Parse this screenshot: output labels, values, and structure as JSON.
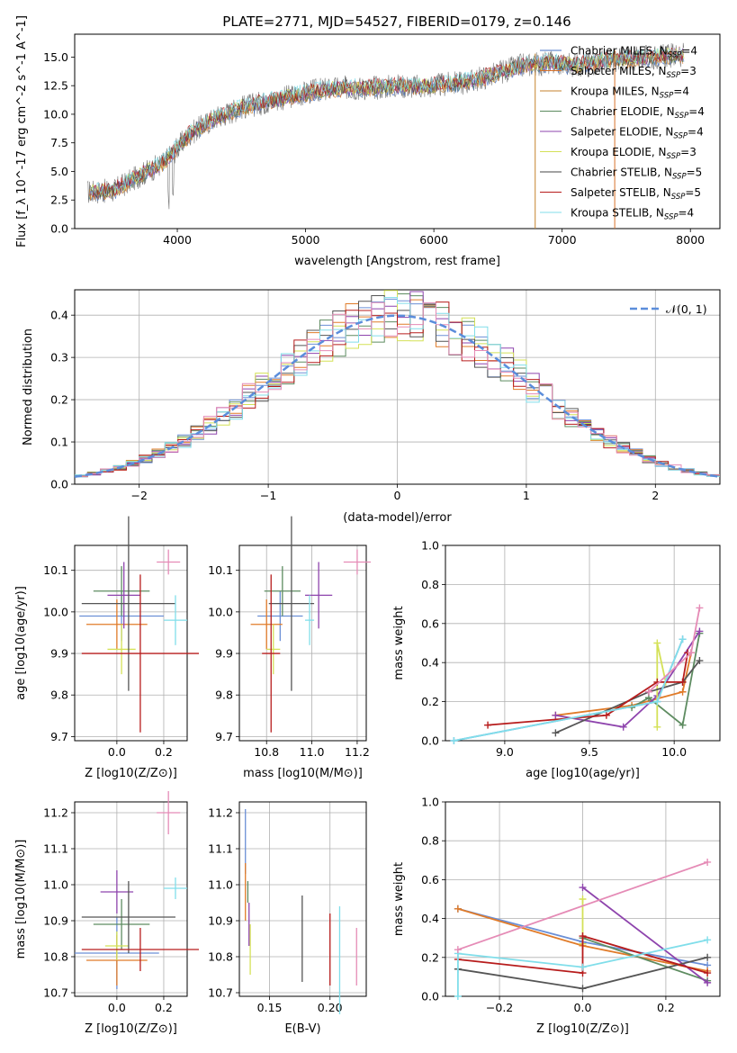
{
  "figure_title": "PLATE=2771, MJD=54527, FIBERID=0179, z=0.146",
  "colors": {
    "series": [
      "#4472c4",
      "#d8732b",
      "#c5822c",
      "#5b8a5e",
      "#8e44ad",
      "#d4e157",
      "#444444",
      "#b71c1c",
      "#80deea"
    ],
    "fit_series": [
      "#6b8fd6",
      "#e07b29",
      "#5e8c61",
      "#8e44ad",
      "#d4e157",
      "#555555",
      "#b71c1c",
      "#80deea",
      "#e58bb6"
    ],
    "gaussian": "#5b8ddb",
    "grid": "#b0b0b0"
  },
  "chart_data": [
    {
      "type": "line",
      "title": "PLATE=2771, MJD=54527, FIBERID=0179, z=0.146",
      "xlabel": "wavelength [Angstrom, rest frame]",
      "ylabel": "Flux [f_λ 10^-17 erg cm^-2 s^-1 A^-1]",
      "xlim": [
        3200,
        8230
      ],
      "ylim": [
        0,
        17
      ],
      "xticks": [
        "4000",
        "5000",
        "6000",
        "7000",
        "8000"
      ],
      "yticks": [
        "0.0",
        "2.5",
        "5.0",
        "7.5",
        "10.0",
        "12.5",
        "15.0"
      ],
      "legend_position": "upper right",
      "legend": [
        {
          "model": "Chabrier MILES",
          "nssp": "4"
        },
        {
          "model": "Salpeter MILES",
          "nssp": "3"
        },
        {
          "model": "Kroupa MILES",
          "nssp": "4"
        },
        {
          "model": "Chabrier ELODIE",
          "nssp": "4"
        },
        {
          "model": "Salpeter ELODIE",
          "nssp": "4"
        },
        {
          "model": "Kroupa ELODIE",
          "nssp": "3"
        },
        {
          "model": "Chabrier STELIB",
          "nssp": "5"
        },
        {
          "model": "Salpeter STELIB",
          "nssp": "5"
        },
        {
          "model": "Kroupa STELIB",
          "nssp": "4"
        }
      ],
      "data_series": {
        "wavelength": [
          3300,
          3500,
          3700,
          3900,
          4100,
          4300,
          4500,
          4700,
          4900,
          5100,
          5300,
          5500,
          5700,
          5900,
          6100,
          6300,
          6500,
          6700,
          6900,
          7100,
          7300,
          7500,
          7700,
          7900
        ],
        "flux": [
          3.2,
          3.3,
          4.6,
          5.8,
          8.3,
          9.7,
          10.6,
          11.1,
          11.6,
          12.1,
          12.3,
          12.3,
          12.5,
          12.4,
          12.6,
          12.9,
          13.6,
          14.3,
          14.5,
          14.3,
          14.6,
          14.8,
          15.0,
          15.2
        ]
      }
    },
    {
      "type": "histogram",
      "xlabel": "(data-model)/error",
      "ylabel": "Normed distribution",
      "xlim": [
        -2.5,
        2.5
      ],
      "ylim": [
        0,
        0.46
      ],
      "xticks": [
        "−2",
        "−1",
        "0",
        "1",
        "2"
      ],
      "yticks": [
        "0.0",
        "0.1",
        "0.2",
        "0.3",
        "0.4"
      ],
      "legend": "𝒩(0, 1)",
      "legend_position": "upper right",
      "bin_width": 0.1,
      "bin_start": -2.5
    },
    {
      "type": "scatter",
      "panel": "age_vs_Z",
      "xlabel": "Z [log10(Z/Z⊙)]",
      "ylabel": "age  [log10(age/yr)]",
      "xlim": [
        -0.18,
        0.3
      ],
      "ylim": [
        9.69,
        10.16
      ],
      "xticks": [
        "0.0",
        "0.2"
      ],
      "yticks": [
        "9.7",
        "9.8",
        "9.9",
        "10.0",
        "10.1"
      ],
      "points": [
        {
          "x": 0.02,
          "y": 9.99,
          "xerr": 0.18,
          "yerr": 0.06
        },
        {
          "x": 0.0,
          "y": 9.97,
          "xerr": 0.13,
          "yerr": 0.06
        },
        {
          "x": 0.02,
          "y": 10.05,
          "xerr": 0.12,
          "yerr": 0.06
        },
        {
          "x": 0.03,
          "y": 10.04,
          "xerr": 0.07,
          "yerr": 0.08
        },
        {
          "x": 0.02,
          "y": 9.91,
          "xerr": 0.06,
          "yerr": 0.06
        },
        {
          "x": 0.05,
          "y": 10.02,
          "xerr": 0.2,
          "yerr": 0.21
        },
        {
          "x": 0.1,
          "y": 9.9,
          "xerr": 0.25,
          "yerr": 0.19
        },
        {
          "x": 0.25,
          "y": 9.98,
          "xerr": 0.05,
          "yerr": 0.06
        },
        {
          "x": 0.22,
          "y": 10.12,
          "xerr": 0.05,
          "yerr": 0.03
        }
      ]
    },
    {
      "type": "scatter",
      "panel": "age_vs_mass",
      "xlabel": "mass [log10(M/M⊙)]",
      "ylabel": "",
      "xlim": [
        10.68,
        11.24
      ],
      "ylim": [
        9.69,
        10.16
      ],
      "xticks": [
        "10.8",
        "11.0",
        "11.2"
      ],
      "yticks": [
        "9.7",
        "9.8",
        "9.9",
        "10.0",
        "10.1"
      ],
      "points": [
        {
          "x": 10.86,
          "y": 9.99,
          "xerr": 0.1,
          "yerr": 0.06
        },
        {
          "x": 10.8,
          "y": 9.97,
          "xerr": 0.07,
          "yerr": 0.06
        },
        {
          "x": 10.87,
          "y": 10.05,
          "xerr": 0.08,
          "yerr": 0.06
        },
        {
          "x": 11.03,
          "y": 10.04,
          "xerr": 0.06,
          "yerr": 0.08
        },
        {
          "x": 10.83,
          "y": 9.91,
          "xerr": 0.03,
          "yerr": 0.06
        },
        {
          "x": 10.91,
          "y": 10.02,
          "xerr": 0.1,
          "yerr": 0.21
        },
        {
          "x": 10.82,
          "y": 9.9,
          "xerr": 0.04,
          "yerr": 0.19
        },
        {
          "x": 10.99,
          "y": 9.98,
          "xerr": 0.02,
          "yerr": 0.06
        },
        {
          "x": 11.2,
          "y": 10.12,
          "xerr": 0.06,
          "yerr": 0.03
        }
      ]
    },
    {
      "type": "line",
      "panel": "mass_weight_vs_age",
      "xlabel": "age  [log10(age/yr)]",
      "ylabel": "mass weight",
      "xlim": [
        8.65,
        10.27
      ],
      "ylim": [
        0,
        1
      ],
      "xticks": [
        "9.0",
        "9.5",
        "10.0"
      ],
      "yticks": [
        "0.0",
        "0.2",
        "0.4",
        "0.6",
        "0.8",
        "1.0"
      ],
      "series": [
        {
          "points": [
            [
              8.7,
              0.0
            ],
            [
              9.9,
              0.2
            ],
            [
              10.05,
              0.52
            ]
          ]
        },
        {
          "points": [
            [
              9.3,
              0.13
            ],
            [
              9.75,
              0.18
            ],
            [
              10.05,
              0.25
            ],
            [
              10.1,
              0.45
            ]
          ]
        },
        {
          "points": [
            [
              9.75,
              0.17
            ],
            [
              9.85,
              0.22
            ],
            [
              10.05,
              0.08
            ],
            [
              10.15,
              0.55
            ]
          ]
        },
        {
          "points": [
            [
              9.3,
              0.13
            ],
            [
              9.7,
              0.07
            ],
            [
              9.9,
              0.23
            ],
            [
              10.15,
              0.56
            ]
          ]
        },
        {
          "points": [
            [
              9.9,
              0.07
            ],
            [
              9.9,
              0.5
            ],
            [
              9.95,
              0.3
            ]
          ]
        },
        {
          "points": [
            [
              9.3,
              0.04
            ],
            [
              9.85,
              0.25
            ],
            [
              10.05,
              0.3
            ],
            [
              10.15,
              0.41
            ]
          ]
        },
        {
          "points": [
            [
              8.9,
              0.08
            ],
            [
              9.6,
              0.13
            ],
            [
              9.9,
              0.3
            ],
            [
              10.05,
              0.3
            ],
            [
              10.08,
              0.45
            ]
          ]
        },
        {
          "points": [
            [
              8.7,
              0.0
            ],
            [
              9.9,
              0.2
            ],
            [
              10.05,
              0.52
            ]
          ]
        },
        {
          "points": [
            [
              9.85,
              0.25
            ],
            [
              10.1,
              0.45
            ],
            [
              10.15,
              0.68
            ]
          ]
        }
      ]
    },
    {
      "type": "scatter",
      "panel": "mass_vs_Z",
      "xlabel": "Z [log10(Z/Z⊙)]",
      "ylabel": "mass [log10(M/M⊙)]",
      "xlim": [
        -0.18,
        0.3
      ],
      "ylim": [
        10.69,
        11.23
      ],
      "xticks": [
        "0.0",
        "0.2"
      ],
      "yticks": [
        "10.7",
        "10.8",
        "10.9",
        "11.0",
        "11.1",
        "11.2"
      ],
      "points": [
        {
          "x": 0.0,
          "y": 10.81,
          "xerr": 0.18,
          "yerr": 0.1
        },
        {
          "x": 0.0,
          "y": 10.79,
          "xerr": 0.13,
          "yerr": 0.07
        },
        {
          "x": 0.02,
          "y": 10.89,
          "xerr": 0.12,
          "yerr": 0.07
        },
        {
          "x": 0.0,
          "y": 10.98,
          "xerr": 0.07,
          "yerr": 0.06
        },
        {
          "x": 0.0,
          "y": 10.83,
          "xerr": 0.05,
          "yerr": 0.04
        },
        {
          "x": 0.05,
          "y": 10.91,
          "xerr": 0.2,
          "yerr": 0.1
        },
        {
          "x": 0.1,
          "y": 10.82,
          "xerr": 0.25,
          "yerr": 0.06
        },
        {
          "x": 0.25,
          "y": 10.99,
          "xerr": 0.05,
          "yerr": 0.03
        },
        {
          "x": 0.22,
          "y": 11.2,
          "xerr": 0.05,
          "yerr": 0.06
        }
      ]
    },
    {
      "type": "scatter",
      "panel": "mass_vs_EBV",
      "xlabel": "E(B-V)",
      "ylabel": "",
      "xlim": [
        0.125,
        0.23
      ],
      "ylim": [
        10.69,
        11.23
      ],
      "xticks": [
        "0.15",
        "0.20"
      ],
      "yticks": [
        "10.7",
        "10.8",
        "10.9",
        "11.0",
        "11.1",
        "11.2"
      ],
      "points": [
        {
          "x": 0.13,
          "y": 11.12,
          "yerr": 0.09
        },
        {
          "x": 0.13,
          "y": 10.98,
          "yerr": 0.08
        },
        {
          "x": 0.132,
          "y": 10.98,
          "yerr": 0.03
        },
        {
          "x": 0.133,
          "y": 10.89,
          "yerr": 0.06
        },
        {
          "x": 0.134,
          "y": 10.82,
          "yerr": 0.07
        },
        {
          "x": 0.177,
          "y": 10.85,
          "yerr": 0.12
        },
        {
          "x": 0.2,
          "y": 10.82,
          "yerr": 0.1
        },
        {
          "x": 0.208,
          "y": 10.79,
          "yerr": 0.15
        },
        {
          "x": 0.222,
          "y": 10.8,
          "yerr": 0.08
        }
      ]
    },
    {
      "type": "line",
      "panel": "mass_weight_vs_Z",
      "xlabel": "Z [log10(Z/Z⊙)]",
      "ylabel": "mass weight",
      "xlim": [
        -0.33,
        0.33
      ],
      "ylim": [
        0,
        1
      ],
      "xticks": [
        "−0.2",
        "0.0",
        "0.2"
      ],
      "yticks": [
        "0.0",
        "0.2",
        "0.4",
        "0.6",
        "0.8",
        "1.0"
      ],
      "series": [
        {
          "points": [
            [
              -0.3,
              0.45
            ],
            [
              0.0,
              0.28
            ],
            [
              0.3,
              0.16
            ]
          ]
        },
        {
          "points": [
            [
              -0.3,
              0.45
            ],
            [
              0.0,
              0.26
            ],
            [
              0.3,
              0.13
            ]
          ]
        },
        {
          "points": [
            [
              0.0,
              0.3
            ],
            [
              0.3,
              0.08
            ]
          ]
        },
        {
          "points": [
            [
              0.0,
              0.56
            ],
            [
              0.3,
              0.07
            ]
          ]
        },
        {
          "points": [
            [
              0.0,
              0.27
            ],
            [
              0.0,
              0.5
            ]
          ]
        },
        {
          "points": [
            [
              -0.3,
              0.14
            ],
            [
              0.0,
              0.04
            ],
            [
              0.3,
              0.2
            ]
          ]
        },
        {
          "points": [
            [
              -0.3,
              0.19
            ],
            [
              0.0,
              0.12
            ],
            [
              0.0,
              0.31
            ],
            [
              0.3,
              0.12
            ]
          ]
        },
        {
          "points": [
            [
              -0.3,
              0.0
            ],
            [
              -0.3,
              0.22
            ],
            [
              0.0,
              0.15
            ],
            [
              0.3,
              0.29
            ]
          ]
        },
        {
          "points": [
            [
              -0.3,
              0.24
            ],
            [
              0.3,
              0.69
            ]
          ]
        }
      ]
    }
  ]
}
